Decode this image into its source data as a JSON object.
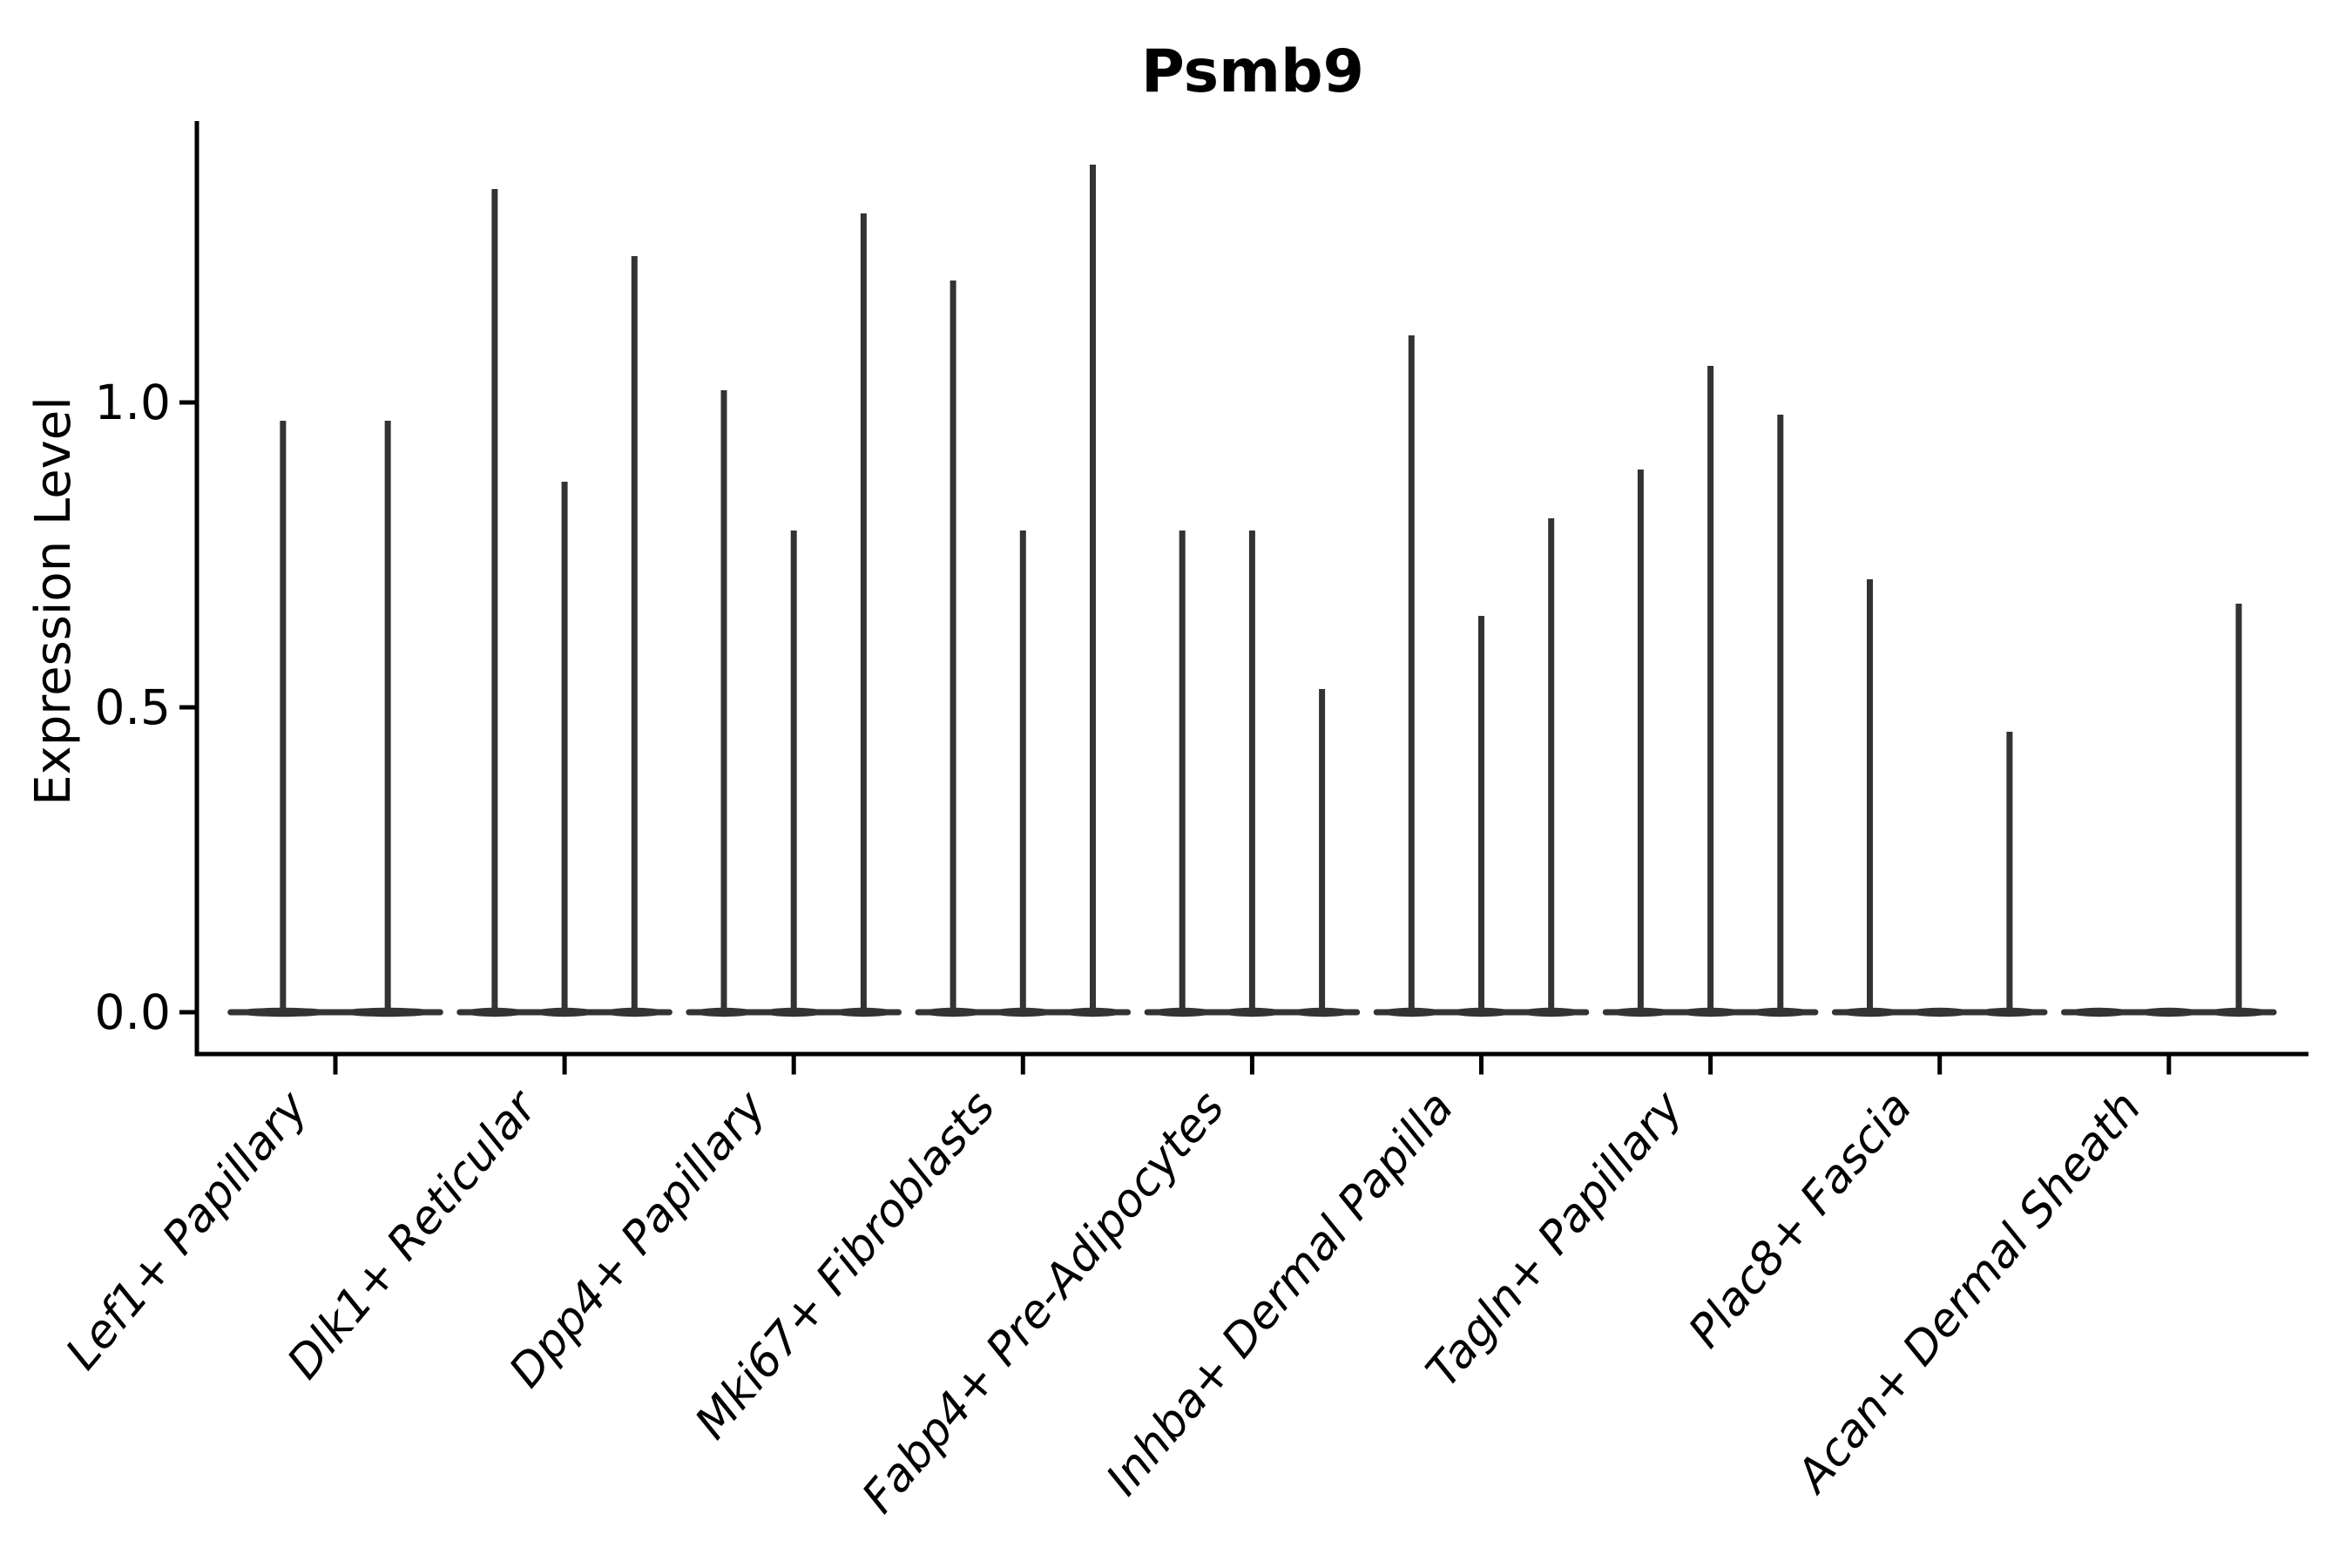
{
  "chart_data": {
    "type": "violin",
    "title": "Psmb9",
    "xlabel": "",
    "ylabel": "Expression Level",
    "ylim": [
      -0.07,
      1.46
    ],
    "grid": false,
    "legend": "none",
    "yticks": [
      {
        "value": 0.0,
        "label": "0.0"
      },
      {
        "value": 0.5,
        "label": "0.5"
      },
      {
        "value": 1.0,
        "label": "1.0"
      }
    ],
    "categories": [
      "Lef1+ Papillary",
      "Dlk1+ Reticular",
      "Dpp4+ Papillary",
      "Mki67+ Fibroblasts",
      "Fabp4+ Pre-Adipocytes",
      "Inhba+ Dermal Papilla",
      "Tagln+ Papillary",
      "Plac8+ Fascia",
      "Acan+ Dermal Sheath"
    ],
    "groups": [
      {
        "label": "Lef1+ Papillary",
        "violin_max_values": [
          0.97,
          0.97
        ]
      },
      {
        "label": "Dlk1+ Reticular",
        "violin_max_values": [
          1.35,
          0.87,
          1.24
        ]
      },
      {
        "label": "Dpp4+ Papillary",
        "violin_max_values": [
          1.02,
          0.79,
          1.31
        ]
      },
      {
        "label": "Mki67+ Fibroblasts",
        "violin_max_values": [
          1.2,
          0.79,
          1.39
        ]
      },
      {
        "label": "Fabp4+ Pre-Adipocytes",
        "violin_max_values": [
          0.79,
          0.79,
          0.53
        ]
      },
      {
        "label": "Inhba+ Dermal Papilla",
        "violin_max_values": [
          1.11,
          0.65,
          0.81
        ]
      },
      {
        "label": "Tagln+ Papillary",
        "violin_max_values": [
          0.89,
          1.06,
          0.98
        ]
      },
      {
        "label": "Plac8+ Fascia",
        "violin_max_values": [
          0.71,
          0.0,
          0.46
        ]
      },
      {
        "label": "Acan+ Dermal Sheath",
        "violin_max_values": [
          0.0,
          0.0,
          0.67
        ]
      }
    ],
    "violins_note": "Each group shows 2-3 ultra-thin violins: a flat body at expression 0 plus a vertical spike up to the listed max expression; 0.0 means flat violin with no spike.",
    "colors": {
      "violin_stroke": "#333333",
      "axis": "#000000",
      "title_text": "#000000",
      "background": "#ffffff"
    }
  }
}
